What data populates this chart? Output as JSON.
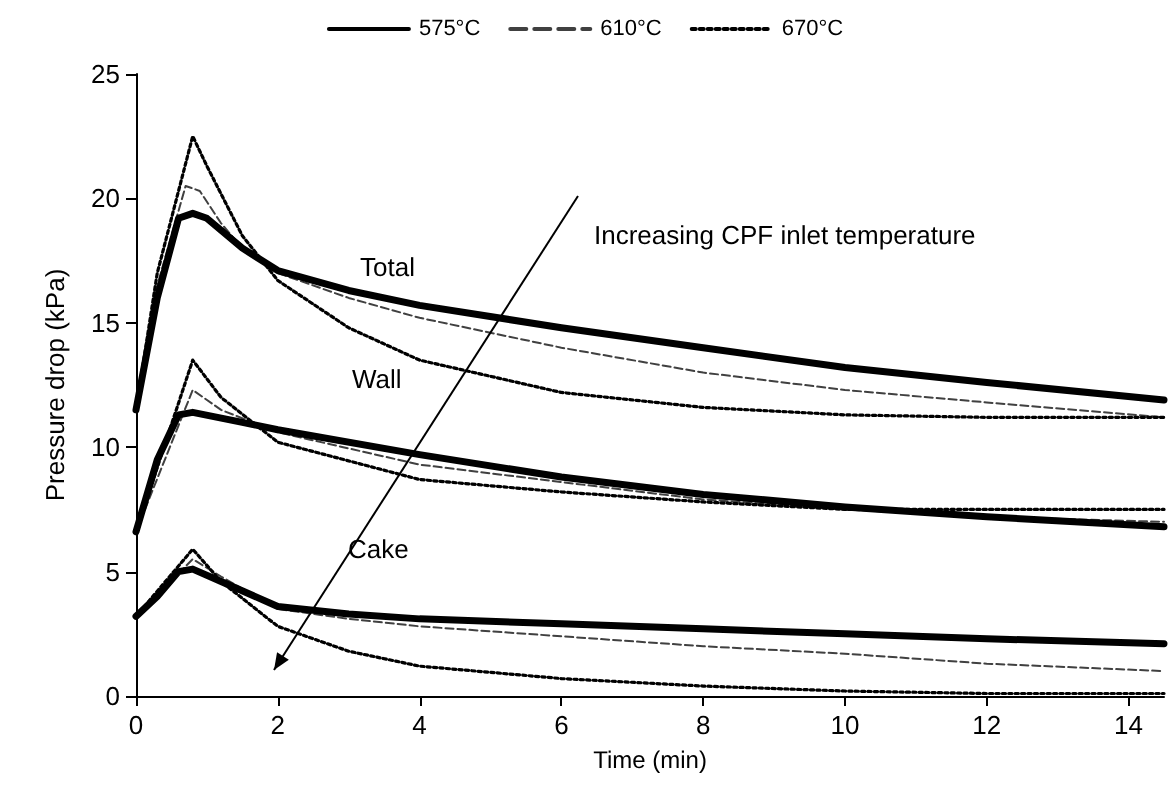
{
  "chart_data": {
    "type": "line",
    "xlabel": "Time (min)",
    "ylabel": "Pressure drop (kPa)",
    "xlim": [
      0,
      14.5
    ],
    "xticks": [
      0,
      2,
      4,
      6,
      8,
      10,
      12,
      14
    ],
    "ylim": [
      0,
      25
    ],
    "yticks": [
      0,
      5,
      10,
      15,
      20,
      25
    ],
    "grid": false,
    "legend": "top",
    "marker": "none",
    "annotations": [
      "Total",
      "Wall",
      "Cake",
      "Increasing CPF inlet temperature"
    ],
    "series": [
      {
        "name": "575°C",
        "color": "#000000",
        "line_style": "solid",
        "x": [
          0,
          0.3,
          0.6,
          0.8,
          1,
          1.5,
          2,
          3,
          4,
          6,
          8,
          10,
          12,
          14.5
        ],
        "values": [
          11.5,
          16,
          19.2,
          19.4,
          19.2,
          18,
          17.1,
          16.3,
          15.7,
          14.8,
          14,
          13.2,
          12.6,
          11.9
        ]
      },
      {
        "name": "610°C",
        "color": "#404040",
        "line_style": "dashed",
        "x": [
          0,
          0.3,
          0.7,
          0.9,
          1.2,
          1.5,
          2,
          3,
          4,
          6,
          8,
          10,
          12,
          14.5
        ],
        "values": [
          11.5,
          16.5,
          20.5,
          20.3,
          19,
          18,
          17,
          16,
          15.2,
          14,
          13,
          12.3,
          11.8,
          11.2
        ]
      },
      {
        "name": "670°C",
        "color": "#000000",
        "line_style": "dotted",
        "x": [
          0,
          0.3,
          0.8,
          1,
          1.5,
          2,
          3,
          4,
          6,
          8,
          10,
          12,
          14.5
        ],
        "values": [
          11.5,
          17,
          22.5,
          21.3,
          18.5,
          16.7,
          14.8,
          13.5,
          12.2,
          11.6,
          11.3,
          11.2,
          11.2
        ]
      },
      {
        "color": "#000000",
        "line_style": "solid",
        "x": [
          0,
          0.3,
          0.6,
          0.8,
          1.5,
          2,
          4,
          6,
          8,
          10,
          12,
          14.5
        ],
        "values": [
          6.6,
          9.5,
          11.3,
          11.4,
          11,
          10.7,
          9.7,
          8.8,
          8.1,
          7.6,
          7.2,
          6.8
        ]
      },
      {
        "color": "#404040",
        "line_style": "dashed",
        "x": [
          0,
          0.8,
          1.2,
          2,
          4,
          6,
          8,
          10,
          12,
          14.5
        ],
        "values": [
          6.6,
          12.3,
          11.5,
          10.6,
          9.3,
          8.6,
          7.9,
          7.5,
          7.2,
          7
        ]
      },
      {
        "color": "#000000",
        "line_style": "dotted",
        "x": [
          0,
          0.8,
          1.2,
          2,
          4,
          6,
          8,
          10,
          14.5
        ],
        "values": [
          6.6,
          13.5,
          12,
          10.2,
          8.7,
          8.2,
          7.8,
          7.5,
          7.5
        ]
      },
      {
        "color": "#000000",
        "line_style": "solid",
        "x": [
          0,
          0.3,
          0.6,
          0.8,
          1.2,
          2,
          3,
          4,
          6,
          8,
          10,
          12,
          14.5
        ],
        "values": [
          3.2,
          4,
          5,
          5.1,
          4.6,
          3.6,
          3.3,
          3.1,
          2.9,
          2.7,
          2.5,
          2.3,
          2.1
        ]
      },
      {
        "color": "#404040",
        "line_style": "dashed",
        "x": [
          0,
          0.8,
          1.2,
          2,
          3,
          4,
          6,
          8,
          10,
          12,
          14.5
        ],
        "values": [
          3.2,
          5.5,
          4.8,
          3.5,
          3.1,
          2.8,
          2.4,
          2,
          1.7,
          1.3,
          1
        ]
      },
      {
        "color": "#000000",
        "line_style": "dotted",
        "x": [
          0,
          0.8,
          1.2,
          2,
          3,
          4,
          6,
          8,
          10,
          12,
          14.5
        ],
        "values": [
          3.2,
          5.9,
          4.6,
          2.8,
          1.8,
          1.2,
          0.7,
          0.4,
          0.2,
          0.1,
          0.1
        ]
      }
    ]
  }
}
